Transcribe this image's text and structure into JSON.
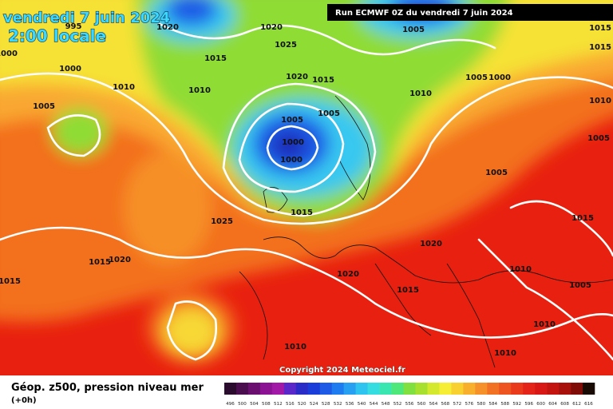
{
  "header": {
    "date": "vendredi 7 juin 2024",
    "time": "2:00 locale"
  },
  "run": "Run ECMWF 0Z du vendredi 7 juin 2024",
  "copyright": "Copyright 2024 Meteociel.fr",
  "legend": {
    "title": "Géop. z500, pression niveau mer",
    "step": "(+0h)",
    "labels": [
      496,
      500,
      504,
      508,
      512,
      516,
      520,
      524,
      528,
      532,
      536,
      540,
      544,
      548,
      552,
      556,
      560,
      564,
      568,
      572,
      576,
      580,
      584,
      588,
      592,
      596,
      600,
      604,
      608,
      612,
      616
    ],
    "colors": [
      "#2b0b2e",
      "#4a0e4e",
      "#6a0f70",
      "#8b1393",
      "#a219a8",
      "#5a28c8",
      "#2a2cc8",
      "#1a3cd8",
      "#1d5ae6",
      "#1f7cf0",
      "#27a0f2",
      "#2fc4f0",
      "#36dde0",
      "#3ae6b0",
      "#4ee87a",
      "#7fe040",
      "#a8e030",
      "#d4e82e",
      "#f6ee34",
      "#f8d030",
      "#f8b02c",
      "#f69028",
      "#f27224",
      "#ee5420",
      "#ea3a1c",
      "#e42418",
      "#d81814",
      "#c41410",
      "#a8100c",
      "#800c08",
      "#1a0a04"
    ]
  },
  "isobar_labels": [
    1020,
    995,
    1000,
    1000,
    1005,
    1010,
    1010,
    1015,
    1020,
    1025,
    1020,
    1015,
    1005,
    1005,
    1000,
    1000,
    1015,
    1025,
    1015,
    1020,
    1015,
    1010,
    1005,
    1005,
    1000,
    1015,
    1015,
    1010,
    1005,
    1005,
    1015,
    1020,
    1020,
    1015,
    1010,
    1005,
    1010,
    1010,
    1010
  ]
}
